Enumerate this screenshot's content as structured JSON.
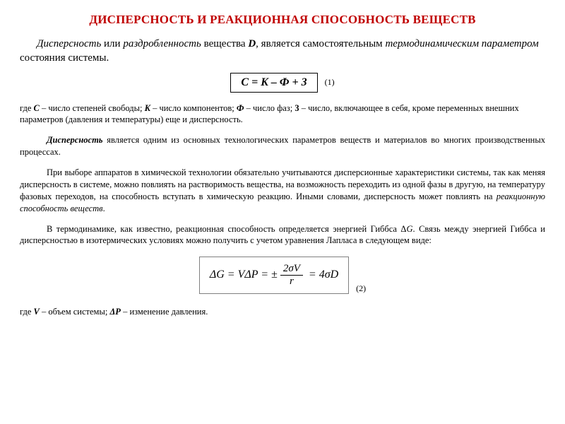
{
  "title": "ДИСПЕРСНОСТЬ И РЕАКЦИОННАЯ СПОСОБНОСТЬ ВЕЩЕСТВ",
  "intro": {
    "seg1": "Дисперсность",
    "seg2": " или ",
    "seg3": "раздробленность",
    "seg4": " вещества ",
    "seg5": "D",
    "seg6": ", является самостоятельным ",
    "seg7": "термодинамическим параметром",
    "seg8": " состояния системы."
  },
  "eq1": {
    "text": "C = K – Ф + 3",
    "num": "(1)"
  },
  "where1": {
    "pre": "где ",
    "C": "C",
    "Ctxt": " – число степеней свободы; ",
    "K": "K",
    "Ktxt": " – число компонентов;  ",
    "F": "Ф",
    "Ftxt": " – число фаз;  ",
    "three": "3",
    "threetxt": " – число, включающее в себя, кроме переменных внешних параметров (давления и температуры) еще и дисперсность."
  },
  "p1": {
    "lead": "Дисперсность",
    "rest": " является одним из основных технологических параметров веществ и материалов во многих производственных процессах."
  },
  "p2": {
    "text": "При выборе аппаратов в химической технологии обязательно учитываются дисперсионные характеристики системы, так как меняя дисперсность в системе, можно повлиять на растворимость вещества, на возможность переходить из одной фазы в другую, на температуру фазовых переходов, на способность вступать в химическую реакцию. Иными словами, дисперсность может повлиять на ",
    "em": "реакционную способность веществ",
    "tail": "."
  },
  "p3": {
    "a": "В термодинамике, как известно, реакционная  способность определяется энергией Гиббса Δ",
    "G1": "G",
    "b": ". Связь между энергией Гиббса и дисперсностью в изотермических условиях можно получить с учетом уравнения Лапласа в следующем виде:"
  },
  "eq2": {
    "lhs1": "ΔG = VΔP = ±",
    "frac_num": "2σV",
    "frac_den": "r",
    "rhs": " = 4σD",
    "num": "(2)"
  },
  "where2": {
    "pre": "где ",
    "V": "V",
    "Vtxt": " – объем системы;     ",
    "dP": "ΔP",
    "dPtxt": " – изменение давления."
  },
  "style": {
    "title_color": "#c00000",
    "body_bg": "#ffffff",
    "text_color": "#000000",
    "eq1_border": "#000000",
    "eq2_border": "#808080",
    "title_fontsize": 17,
    "intro_fontsize": 15,
    "small_fontsize": 12.5,
    "eq_fontsize": 16,
    "font_family": "Times New Roman"
  }
}
